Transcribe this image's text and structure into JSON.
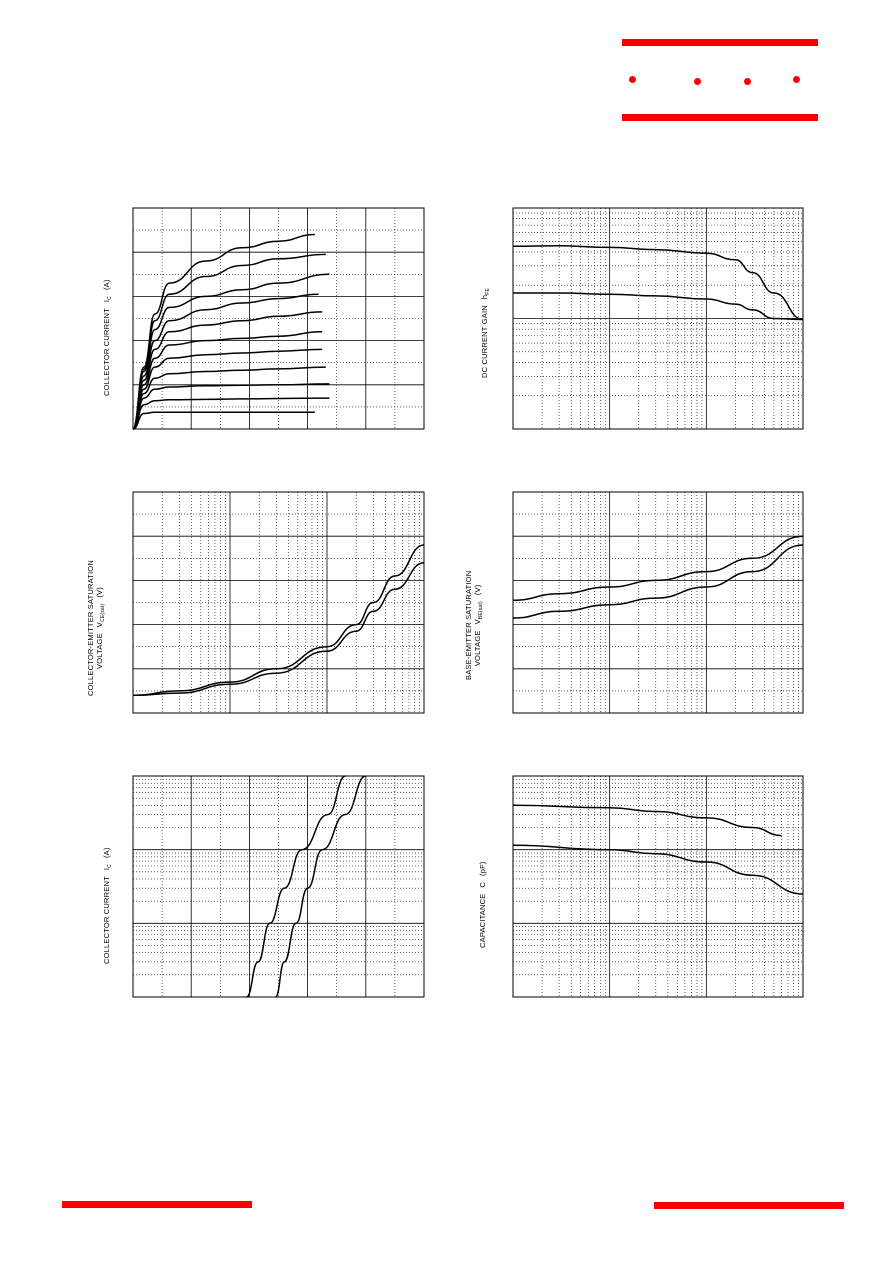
{
  "brand": {
    "accent_color": "#ff0000"
  },
  "charts": {
    "ic_vce": {
      "ylabel": "COLLECTOR CURRENT",
      "ysym": "I",
      "ysub": "C",
      "yunit": "(A)"
    },
    "hfe": {
      "ylabel": "DC CURRENT GAIN",
      "ysym": "h",
      "ysub": "FE",
      "yunit": ""
    },
    "vcesat": {
      "ylabel1": "COLLECTOR-EMITTER SATURATION",
      "ylabel2": "VOLTAGE",
      "ysym": "V",
      "ysub": "CE(sat)",
      "yunit": "(V)"
    },
    "vbesat": {
      "ylabel1": "BASE-EMITTER SATURATION",
      "ylabel2": "VOLTAGE",
      "ysym": "V",
      "ysub": "BE(sat)",
      "yunit": "(V)"
    },
    "ic_vbe": {
      "ylabel": "COLLECTOR CURRENT",
      "ysym": "I",
      "ysub": "C",
      "yunit": "(A)"
    },
    "cap": {
      "ylabel": "CAPACITANCE",
      "ysym": "C",
      "ysub": "",
      "yunit": "(pF)"
    }
  },
  "chart_data": [
    {
      "type": "line",
      "id": "ic_vce",
      "x_scale": "linear",
      "y_scale": "linear",
      "xlim": [
        0,
        8
      ],
      "ylim": [
        0,
        5
      ],
      "grid": true,
      "series": [
        {
          "x": [
            0,
            0.3,
            0.6,
            1,
            2,
            3,
            4,
            5
          ],
          "y": [
            0,
            0.35,
            0.38,
            0.38,
            0.38,
            0.38,
            0.38,
            0.38
          ]
        },
        {
          "x": [
            0,
            0.3,
            0.6,
            1,
            2,
            3,
            4,
            5.4
          ],
          "y": [
            0,
            0.55,
            0.64,
            0.66,
            0.67,
            0.68,
            0.69,
            0.7
          ]
        },
        {
          "x": [
            0,
            0.3,
            0.6,
            1,
            2,
            3,
            4,
            5.4
          ],
          "y": [
            0,
            0.7,
            0.9,
            0.95,
            0.98,
            0.99,
            1.0,
            1.02
          ]
        },
        {
          "x": [
            0,
            0.3,
            0.6,
            1,
            2,
            3,
            4,
            5.3
          ],
          "y": [
            0,
            0.8,
            1.15,
            1.25,
            1.3,
            1.33,
            1.36,
            1.4
          ]
        },
        {
          "x": [
            0,
            0.3,
            0.6,
            1,
            2,
            3,
            4,
            5.2
          ],
          "y": [
            0,
            0.9,
            1.4,
            1.6,
            1.68,
            1.72,
            1.76,
            1.8
          ]
        },
        {
          "x": [
            0,
            0.3,
            0.6,
            1,
            2,
            3,
            4,
            5.2
          ],
          "y": [
            0,
            1.0,
            1.6,
            1.9,
            2.0,
            2.05,
            2.1,
            2.2
          ]
        },
        {
          "x": [
            0,
            0.3,
            0.6,
            1,
            2,
            3,
            4,
            5.2
          ],
          "y": [
            0,
            1.1,
            1.8,
            2.2,
            2.35,
            2.45,
            2.55,
            2.65
          ]
        },
        {
          "x": [
            0,
            0.3,
            0.6,
            1,
            2,
            3,
            4,
            5.1
          ],
          "y": [
            0,
            1.2,
            2.0,
            2.45,
            2.7,
            2.85,
            2.95,
            3.05
          ]
        },
        {
          "x": [
            0,
            0.3,
            0.6,
            1,
            2,
            3,
            4,
            5.4
          ],
          "y": [
            0,
            1.3,
            2.25,
            2.75,
            3.0,
            3.15,
            3.3,
            3.5
          ]
        },
        {
          "x": [
            0,
            0.3,
            0.6,
            1,
            2,
            3,
            4,
            5.3
          ],
          "y": [
            0,
            1.35,
            2.45,
            3.05,
            3.45,
            3.7,
            3.85,
            3.95
          ]
        },
        {
          "x": [
            0,
            0.3,
            0.6,
            1,
            2,
            3,
            4,
            5.0
          ],
          "y": [
            0,
            1.4,
            2.6,
            3.3,
            3.8,
            4.1,
            4.25,
            4.4
          ]
        }
      ]
    },
    {
      "type": "line",
      "id": "hfe",
      "x_scale": "log",
      "y_scale": "log",
      "xlim": [
        0.01,
        10
      ],
      "ylim": [
        10,
        1000
      ],
      "grid": true,
      "series": [
        {
          "x": [
            0.01,
            0.03,
            0.1,
            0.3,
            1,
            2,
            3,
            5,
            10
          ],
          "y": [
            450,
            455,
            440,
            420,
            390,
            340,
            260,
            170,
            98
          ]
        },
        {
          "x": [
            0.01,
            0.03,
            0.1,
            0.3,
            1,
            2,
            3,
            5,
            10
          ],
          "y": [
            170,
            170,
            166,
            160,
            150,
            135,
            120,
            100,
            98
          ]
        }
      ]
    },
    {
      "type": "line",
      "id": "vcesat",
      "x_scale": "log",
      "y_scale": "linear",
      "xlim": [
        0.01,
        10
      ],
      "ylim": [
        0,
        1.0
      ],
      "grid": true,
      "series": [
        {
          "x": [
            0.01,
            0.03,
            0.1,
            0.3,
            1,
            2,
            3,
            5,
            10
          ],
          "y": [
            0.08,
            0.1,
            0.14,
            0.2,
            0.3,
            0.4,
            0.5,
            0.62,
            0.76
          ]
        },
        {
          "x": [
            0.01,
            0.03,
            0.1,
            0.3,
            1,
            2,
            3,
            5,
            10
          ],
          "y": [
            0.08,
            0.09,
            0.13,
            0.18,
            0.28,
            0.37,
            0.46,
            0.56,
            0.68
          ]
        }
      ]
    },
    {
      "type": "line",
      "id": "vbesat",
      "x_scale": "log",
      "y_scale": "linear",
      "xlim": [
        0.01,
        10
      ],
      "ylim": [
        0,
        1.0
      ],
      "grid": true,
      "series": [
        {
          "x": [
            0.01,
            0.03,
            0.1,
            0.3,
            1,
            3,
            10
          ],
          "y": [
            0.51,
            0.54,
            0.57,
            0.6,
            0.64,
            0.7,
            0.8
          ]
        },
        {
          "x": [
            0.01,
            0.03,
            0.1,
            0.3,
            1,
            3,
            10
          ],
          "y": [
            0.43,
            0.46,
            0.49,
            0.52,
            0.57,
            0.64,
            0.76
          ]
        }
      ]
    },
    {
      "type": "line",
      "id": "ic_vbe",
      "x_scale": "linear",
      "y_scale": "log",
      "xlim": [
        0,
        1.0
      ],
      "ylim": [
        0.01,
        10
      ],
      "grid": true,
      "series": [
        {
          "x": [
            0.39,
            0.43,
            0.47,
            0.52,
            0.58,
            0.67,
            0.73
          ],
          "y": [
            0.01,
            0.03,
            0.1,
            0.3,
            1,
            3,
            10
          ]
        },
        {
          "x": [
            0.49,
            0.52,
            0.56,
            0.6,
            0.65,
            0.73,
            0.8
          ],
          "y": [
            0.01,
            0.03,
            0.1,
            0.3,
            1,
            3,
            10
          ]
        }
      ]
    },
    {
      "type": "line",
      "id": "cap",
      "x_scale": "log",
      "y_scale": "log",
      "xlim": [
        0.1,
        100
      ],
      "ylim": [
        1,
        1000
      ],
      "grid": true,
      "series": [
        {
          "x": [
            0.1,
            1,
            3,
            10,
            30,
            60
          ],
          "y": [
            400,
            370,
            330,
            270,
            200,
            155
          ]
        },
        {
          "x": [
            0.1,
            1,
            3,
            10,
            30,
            100
          ],
          "y": [
            115,
            100,
            88,
            68,
            45,
            25
          ]
        }
      ]
    }
  ]
}
